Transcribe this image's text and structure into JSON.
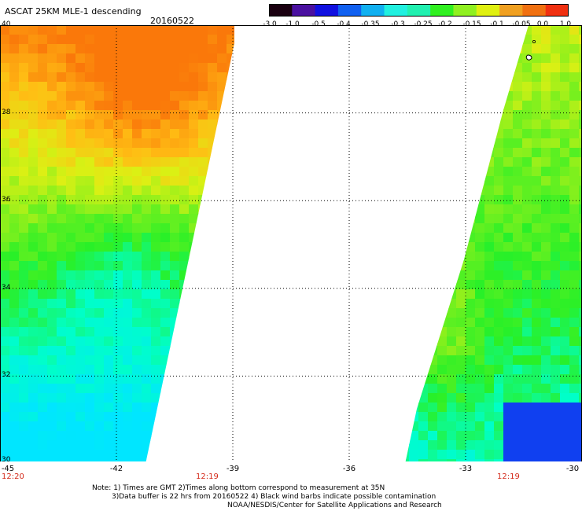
{
  "header": {
    "title": "ASCAT 25KM MLE-1 descending",
    "date": "20160522"
  },
  "colorbar": {
    "labels": [
      "-3.0",
      "-1.0",
      "-0.5",
      "-0.4",
      "-0.35",
      "-0.3",
      "-0.25",
      "-0.2",
      "-0.15",
      "-0.1",
      "-0.05",
      "0.0",
      "1.0"
    ],
    "stops": [
      "#1a0010",
      "#4a10a0",
      "#1010e0",
      "#1060f0",
      "#10b0f0",
      "#20f0e0",
      "#20f0b0",
      "#30f020",
      "#90f020",
      "#e0f010",
      "#f0a020",
      "#f07010",
      "#f03010"
    ]
  },
  "map": {
    "lon_range": [
      -45,
      -30
    ],
    "lat_range": [
      30,
      40
    ],
    "x_ticks": [
      "-45",
      "-42",
      "-39",
      "-36",
      "-33",
      "-30"
    ],
    "y_ticks": [
      "40",
      "38",
      "36",
      "34",
      "32",
      "30"
    ],
    "grid": "dotted",
    "swaths": [
      {
        "name": "west",
        "lon_min": -45,
        "lon_max_at_lat40": -39,
        "lon_max_at_lat30": -40.8
      },
      {
        "name": "east",
        "lon_max": -30,
        "lon_min_at_lat40": -31.3,
        "lon_min_at_lat30": -34.8
      }
    ]
  },
  "times": {
    "left": "12:20",
    "mid": "12:19",
    "right": "12:19"
  },
  "notes": {
    "line1": "Note: 1) Times are GMT 2)Times along bottom correspond to measurement at 35N",
    "line2": "3)Data buffer is 22 hrs from 20160522 4) Black wind barbs indicate possible contamination",
    "line3": "NOAA/NESDIS/Center for Satellite Applications and Research"
  }
}
